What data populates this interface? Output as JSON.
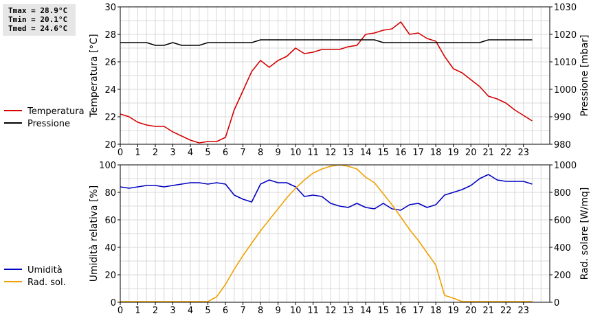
{
  "stats": {
    "tmax": "Tmax = 28.9°C",
    "tmin": "Tmin = 20.1°C",
    "tmed": "Tmed = 24.6°C"
  },
  "colors": {
    "temperatura": "#d40000",
    "pressione": "#000000",
    "umidita": "#0000c0",
    "radiazione": "#f0a000",
    "grid": "#d8d8d8"
  },
  "chart_data": [
    {
      "type": "line",
      "x_ticks": [
        "0",
        "1",
        "2",
        "3",
        "4",
        "5",
        "6",
        "7",
        "8",
        "9",
        "10",
        "11",
        "12",
        "13",
        "14",
        "15",
        "16",
        "17",
        "18",
        "19",
        "20",
        "21",
        "22",
        "23"
      ],
      "xlim": [
        0,
        24.5
      ],
      "ylabel": "Temperatura [°C]",
      "ylim": [
        20,
        30
      ],
      "y_ticks": [
        "20",
        "22",
        "24",
        "26",
        "28",
        "30"
      ],
      "y2label": "Pressione [mbar]",
      "y2lim": [
        980,
        1030
      ],
      "y2_ticks": [
        "980",
        "990",
        "1000",
        "1010",
        "1020",
        "1030"
      ],
      "grid": true,
      "legend": "left",
      "series": [
        {
          "name": "Temperatura",
          "axis": "left",
          "x": [
            0,
            0.5,
            1,
            1.5,
            2,
            2.5,
            3,
            3.5,
            4,
            4.5,
            5,
            5.5,
            6,
            6.5,
            7,
            7.5,
            8,
            8.5,
            9,
            9.5,
            10,
            10.5,
            11,
            11.5,
            12,
            12.5,
            13,
            13.5,
            14,
            14.5,
            15,
            15.5,
            16,
            16.5,
            17,
            17.5,
            18,
            18.5,
            19,
            19.5,
            20,
            20.5,
            21,
            21.5,
            22,
            22.5,
            23,
            23.5
          ],
          "values": [
            22.2,
            22.0,
            21.6,
            21.4,
            21.3,
            21.3,
            20.9,
            20.6,
            20.3,
            20.1,
            20.2,
            20.2,
            20.5,
            22.5,
            23.9,
            25.3,
            26.1,
            25.6,
            26.1,
            26.4,
            27.0,
            26.6,
            26.7,
            26.9,
            26.9,
            26.9,
            27.1,
            27.2,
            28.0,
            28.1,
            28.3,
            28.4,
            28.9,
            28.0,
            28.1,
            27.7,
            27.5,
            26.4,
            25.5,
            25.2,
            24.7,
            24.2,
            23.5,
            23.3,
            23.0,
            22.5,
            22.1,
            21.7
          ]
        },
        {
          "name": "Pressione",
          "axis": "right",
          "x": [
            0,
            0.5,
            1,
            1.5,
            2,
            2.5,
            3,
            3.5,
            4,
            4.5,
            5,
            5.5,
            6,
            6.5,
            7,
            7.5,
            8,
            8.5,
            9,
            9.5,
            10,
            10.5,
            11,
            11.5,
            12,
            12.5,
            13,
            13.5,
            14,
            14.5,
            15,
            15.5,
            16,
            16.5,
            17,
            17.5,
            18,
            18.5,
            19,
            19.5,
            20,
            20.5,
            21,
            21.5,
            22,
            22.5,
            23,
            23.5
          ],
          "values": [
            1017,
            1017,
            1017,
            1017,
            1016,
            1016,
            1017,
            1016,
            1016,
            1016,
            1017,
            1017,
            1017,
            1017,
            1017,
            1017,
            1018,
            1018,
            1018,
            1018,
            1018,
            1018,
            1018,
            1018,
            1018,
            1018,
            1018,
            1018,
            1018,
            1018,
            1017,
            1017,
            1017,
            1017,
            1017,
            1017,
            1017,
            1017,
            1017,
            1017,
            1017,
            1017,
            1018,
            1018,
            1018,
            1018,
            1018,
            1018
          ]
        }
      ]
    },
    {
      "type": "line",
      "x_ticks": [
        "0",
        "1",
        "2",
        "3",
        "4",
        "5",
        "6",
        "7",
        "8",
        "9",
        "10",
        "11",
        "12",
        "13",
        "14",
        "15",
        "16",
        "17",
        "18",
        "19",
        "20",
        "21",
        "22",
        "23"
      ],
      "xlim": [
        0,
        24.5
      ],
      "ylabel": "Umidità relativa [%]",
      "ylim": [
        0,
        100
      ],
      "y_ticks": [
        "0",
        "20",
        "40",
        "60",
        "80",
        "100"
      ],
      "y2label": "Rad. solare [W/mq]",
      "y2lim": [
        0,
        1000
      ],
      "y2_ticks": [
        "0",
        "200",
        "400",
        "600",
        "800",
        "1000"
      ],
      "grid": true,
      "legend": "left",
      "series": [
        {
          "name": "Umidità",
          "axis": "left",
          "x": [
            0,
            0.5,
            1,
            1.5,
            2,
            2.5,
            3,
            3.5,
            4,
            4.5,
            5,
            5.5,
            6,
            6.5,
            7,
            7.5,
            8,
            8.5,
            9,
            9.5,
            10,
            10.5,
            11,
            11.5,
            12,
            12.5,
            13,
            13.5,
            14,
            14.5,
            15,
            15.5,
            16,
            16.5,
            17,
            17.5,
            18,
            18.5,
            19,
            19.5,
            20,
            20.5,
            21,
            21.5,
            22,
            22.5,
            23,
            23.5
          ],
          "values": [
            84,
            83,
            84,
            85,
            85,
            84,
            85,
            86,
            87,
            87,
            86,
            87,
            86,
            78,
            75,
            73,
            86,
            89,
            87,
            87,
            84,
            77,
            78,
            77,
            72,
            70,
            69,
            72,
            69,
            68,
            72,
            68,
            67,
            71,
            72,
            69,
            71,
            78,
            80,
            82,
            85,
            90,
            93,
            89,
            88,
            88,
            88,
            86
          ]
        },
        {
          "name": "Rad. sol.",
          "axis": "right",
          "x": [
            0,
            0.5,
            1,
            1.5,
            2,
            2.5,
            3,
            3.5,
            4,
            4.5,
            5,
            5.5,
            6,
            6.5,
            7,
            7.5,
            8,
            8.5,
            9,
            9.5,
            10,
            10.5,
            11,
            11.5,
            12,
            12.5,
            13,
            13.5,
            14,
            14.5,
            15,
            15.5,
            16,
            16.5,
            17,
            17.5,
            18,
            18.5,
            19,
            19.5,
            20,
            20.5,
            21,
            21.5,
            22,
            22.5,
            23,
            23.5
          ],
          "values": [
            5,
            5,
            5,
            5,
            5,
            5,
            5,
            5,
            5,
            5,
            5,
            40,
            130,
            240,
            340,
            430,
            520,
            600,
            680,
            760,
            830,
            890,
            940,
            970,
            990,
            1000,
            990,
            970,
            910,
            870,
            790,
            710,
            620,
            530,
            450,
            360,
            270,
            50,
            30,
            5,
            5,
            5,
            5,
            5,
            5,
            5,
            5,
            5
          ]
        }
      ]
    }
  ],
  "legends": {
    "top": [
      "Temperatura",
      "Pressione"
    ],
    "bottom": [
      "Umidità",
      "Rad. sol."
    ]
  }
}
